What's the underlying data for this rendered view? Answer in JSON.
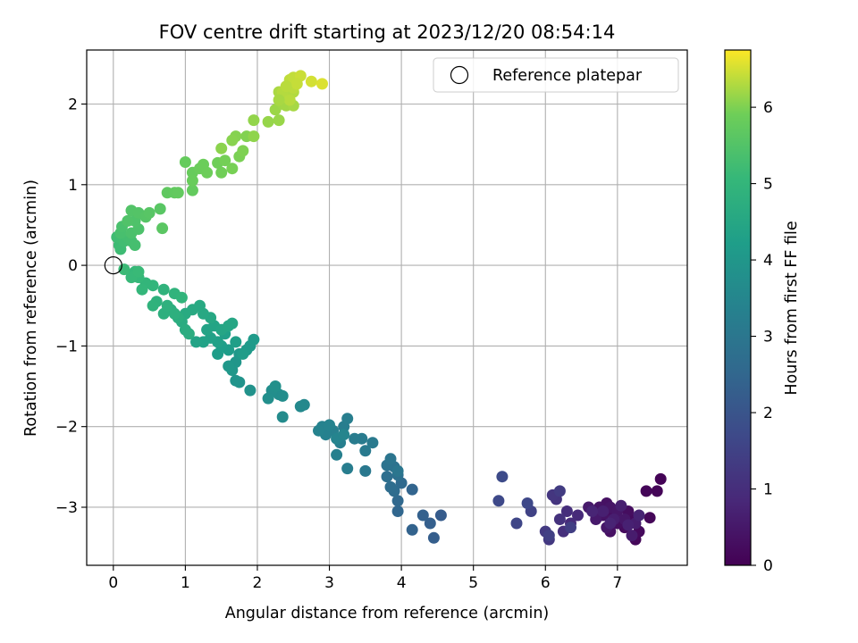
{
  "chart_data": {
    "type": "scatter",
    "title": "FOV centre drift starting at 2023/12/20 08:54:14",
    "xlabel": "Angular distance from reference (arcmin)",
    "ylabel": "Rotation from reference (arcmin)",
    "xlim": [
      -0.37,
      7.97
    ],
    "ylim": [
      -3.72,
      2.67
    ],
    "xticks": [
      0,
      1,
      2,
      3,
      4,
      5,
      6,
      7
    ],
    "yticks": [
      -3,
      -2,
      -1,
      0,
      1,
      2
    ],
    "grid": true,
    "legend": {
      "position": "top-right",
      "entries": [
        "Reference platepar"
      ]
    },
    "reference_point": {
      "x": 0,
      "y": 0
    },
    "colorbar": {
      "label": "Hours from first FF file",
      "range": [
        0,
        6.75
      ],
      "ticks": [
        0,
        1,
        2,
        3,
        4,
        5,
        6
      ],
      "colormap": "viridis"
    },
    "points": [
      [
        7.6,
        -2.65,
        0.05
      ],
      [
        7.55,
        -2.8,
        0.08
      ],
      [
        7.4,
        -2.8,
        0.1
      ],
      [
        7.45,
        -3.13,
        0.12
      ],
      [
        7.25,
        -3.4,
        0.15
      ],
      [
        7.3,
        -3.3,
        0.18
      ],
      [
        7.2,
        -3.15,
        0.2
      ],
      [
        7.1,
        -3.25,
        0.22
      ],
      [
        7.15,
        -3.05,
        0.25
      ],
      [
        7.0,
        -3.2,
        0.28
      ],
      [
        6.95,
        -3.1,
        0.3
      ],
      [
        6.9,
        -3.3,
        0.33
      ],
      [
        6.85,
        -2.95,
        0.35
      ],
      [
        6.8,
        -3.1,
        0.38
      ],
      [
        6.75,
        -3.0,
        0.4
      ],
      [
        6.9,
        -3.0,
        0.43
      ],
      [
        7.0,
        -3.05,
        0.45
      ],
      [
        7.1,
        -3.15,
        0.48
      ],
      [
        6.85,
        -3.25,
        0.5
      ],
      [
        6.7,
        -3.15,
        0.53
      ],
      [
        6.6,
        -3.0,
        0.55
      ],
      [
        7.2,
        -3.35,
        0.58
      ],
      [
        7.25,
        -3.2,
        0.6
      ],
      [
        6.95,
        -3.15,
        0.63
      ],
      [
        7.05,
        -2.98,
        0.65
      ],
      [
        6.8,
        -3.05,
        0.68
      ],
      [
        7.15,
        -3.22,
        0.7
      ],
      [
        7.3,
        -3.1,
        0.73
      ],
      [
        6.9,
        -3.2,
        0.75
      ],
      [
        6.65,
        -3.05,
        0.78
      ],
      [
        6.45,
        -3.1,
        0.9
      ],
      [
        6.35,
        -3.2,
        0.95
      ],
      [
        6.3,
        -3.05,
        1.0
      ],
      [
        6.25,
        -3.3,
        1.05
      ],
      [
        6.2,
        -3.15,
        1.1
      ],
      [
        6.15,
        -2.9,
        1.15
      ],
      [
        6.1,
        -2.85,
        1.2
      ],
      [
        6.05,
        -3.4,
        1.25
      ],
      [
        6.0,
        -3.3,
        1.3
      ],
      [
        6.2,
        -2.8,
        1.35
      ],
      [
        6.35,
        -3.25,
        1.4
      ],
      [
        6.05,
        -3.35,
        1.45
      ],
      [
        5.8,
        -3.05,
        1.5
      ],
      [
        5.6,
        -3.2,
        1.6
      ],
      [
        5.75,
        -2.95,
        1.65
      ],
      [
        5.35,
        -2.92,
        1.7
      ],
      [
        5.4,
        -2.62,
        1.75
      ],
      [
        4.55,
        -3.1,
        2.2
      ],
      [
        4.45,
        -3.38,
        2.25
      ],
      [
        4.4,
        -3.2,
        2.3
      ],
      [
        4.3,
        -3.1,
        2.35
      ],
      [
        4.15,
        -3.28,
        2.4
      ],
      [
        4.15,
        -2.78,
        2.45
      ],
      [
        3.95,
        -3.05,
        2.5
      ],
      [
        3.95,
        -2.92,
        2.55
      ],
      [
        4.0,
        -2.7,
        2.6
      ],
      [
        3.9,
        -2.8,
        2.65
      ],
      [
        3.85,
        -2.75,
        2.7
      ],
      [
        3.8,
        -2.62,
        2.75
      ],
      [
        3.95,
        -2.6,
        2.8
      ],
      [
        3.9,
        -2.5,
        2.85
      ],
      [
        3.8,
        -2.48,
        2.9
      ],
      [
        3.85,
        -2.4,
        2.95
      ],
      [
        3.95,
        -2.55,
        3.0
      ],
      [
        3.5,
        -2.55,
        3.05
      ],
      [
        3.6,
        -2.2,
        3.1
      ],
      [
        3.5,
        -2.3,
        3.12
      ],
      [
        3.45,
        -2.15,
        3.15
      ],
      [
        3.35,
        -2.15,
        3.18
      ],
      [
        3.25,
        -2.52,
        3.2
      ],
      [
        3.2,
        -2.0,
        3.22
      ],
      [
        3.25,
        -1.9,
        3.25
      ],
      [
        3.15,
        -2.2,
        3.28
      ],
      [
        3.1,
        -2.35,
        3.3
      ],
      [
        3.05,
        -2.05,
        3.32
      ],
      [
        2.95,
        -2.1,
        3.35
      ],
      [
        2.9,
        -2.0,
        3.38
      ],
      [
        2.85,
        -2.05,
        3.4
      ],
      [
        3.0,
        -1.98,
        3.42
      ],
      [
        3.1,
        -2.15,
        3.45
      ],
      [
        3.2,
        -2.1,
        3.48
      ],
      [
        2.65,
        -1.73,
        3.55
      ],
      [
        2.6,
        -1.75,
        3.6
      ],
      [
        2.35,
        -1.88,
        3.65
      ],
      [
        2.3,
        -1.6,
        3.7
      ],
      [
        2.35,
        -1.62,
        3.72
      ],
      [
        2.2,
        -1.55,
        3.75
      ],
      [
        2.15,
        -1.65,
        3.78
      ],
      [
        2.25,
        -1.5,
        3.8
      ],
      [
        1.9,
        -1.55,
        3.85
      ],
      [
        1.75,
        -1.45,
        3.9
      ],
      [
        1.7,
        -1.43,
        3.93
      ],
      [
        1.7,
        -1.2,
        3.97
      ],
      [
        1.65,
        -1.3,
        4.0
      ],
      [
        1.6,
        -1.25,
        4.03
      ],
      [
        1.75,
        -1.1,
        4.05
      ],
      [
        1.85,
        -1.05,
        4.08
      ],
      [
        1.9,
        -1.0,
        4.1
      ],
      [
        1.95,
        -0.92,
        4.13
      ],
      [
        1.8,
        -1.1,
        4.15
      ],
      [
        1.6,
        -1.05,
        4.18
      ],
      [
        1.45,
        -1.1,
        4.2
      ],
      [
        1.5,
        -1.0,
        4.22
      ],
      [
        1.7,
        -0.95,
        4.25
      ],
      [
        1.55,
        -0.85,
        4.28
      ],
      [
        1.45,
        -0.95,
        4.3
      ],
      [
        1.35,
        -0.9,
        4.32
      ],
      [
        1.25,
        -0.95,
        4.35
      ],
      [
        1.15,
        -0.95,
        4.38
      ],
      [
        1.3,
        -0.8,
        4.4
      ],
      [
        1.4,
        -0.75,
        4.42
      ],
      [
        1.5,
        -0.8,
        4.45
      ],
      [
        1.6,
        -0.75,
        4.48
      ],
      [
        1.65,
        -0.72,
        4.5
      ],
      [
        1.35,
        -0.65,
        4.52
      ],
      [
        1.25,
        -0.6,
        4.55
      ],
      [
        1.2,
        -0.5,
        4.58
      ],
      [
        1.1,
        -0.55,
        4.6
      ],
      [
        1.0,
        -0.6,
        4.62
      ],
      [
        0.95,
        -0.7,
        4.65
      ],
      [
        1.0,
        -0.8,
        4.68
      ],
      [
        1.05,
        -0.85,
        4.7
      ],
      [
        0.9,
        -0.65,
        4.72
      ],
      [
        0.8,
        -0.55,
        4.75
      ],
      [
        0.85,
        -0.6,
        4.78
      ],
      [
        0.7,
        -0.6,
        4.8
      ],
      [
        0.75,
        -0.5,
        4.82
      ],
      [
        0.6,
        -0.45,
        4.85
      ],
      [
        0.55,
        -0.5,
        4.88
      ],
      [
        0.7,
        -0.3,
        4.9
      ],
      [
        0.85,
        -0.35,
        4.92
      ],
      [
        0.95,
        -0.4,
        4.95
      ],
      [
        0.55,
        -0.25,
        4.98
      ],
      [
        0.45,
        -0.22,
        5.0
      ],
      [
        0.4,
        -0.3,
        5.02
      ],
      [
        0.35,
        -0.15,
        5.05
      ],
      [
        0.3,
        -0.08,
        5.08
      ],
      [
        0.25,
        -0.15,
        5.1
      ],
      [
        0.35,
        -0.08,
        5.12
      ],
      [
        0.15,
        -0.05,
        5.15
      ],
      [
        0.08,
        0.25,
        5.18
      ],
      [
        0.1,
        0.2,
        5.2
      ],
      [
        0.05,
        0.35,
        5.22
      ],
      [
        0.15,
        0.3,
        5.25
      ],
      [
        0.2,
        0.35,
        5.28
      ],
      [
        0.25,
        0.3,
        5.3
      ],
      [
        0.3,
        0.25,
        5.32
      ],
      [
        0.1,
        0.4,
        5.35
      ],
      [
        0.12,
        0.48,
        5.38
      ],
      [
        0.25,
        0.4,
        5.4
      ],
      [
        0.35,
        0.45,
        5.42
      ],
      [
        0.3,
        0.55,
        5.45
      ],
      [
        0.2,
        0.55,
        5.48
      ],
      [
        0.25,
        0.68,
        5.5
      ],
      [
        0.35,
        0.65,
        5.52
      ],
      [
        0.45,
        0.6,
        5.55
      ],
      [
        0.5,
        0.65,
        5.58
      ],
      [
        0.65,
        0.7,
        5.6
      ],
      [
        0.68,
        0.46,
        5.62
      ],
      [
        0.75,
        0.9,
        5.7
      ],
      [
        0.85,
        0.9,
        5.72
      ],
      [
        0.9,
        0.9,
        5.74
      ],
      [
        1.1,
        0.93,
        5.76
      ],
      [
        1.0,
        1.28,
        5.78
      ],
      [
        1.1,
        1.15,
        5.8
      ],
      [
        1.1,
        1.05,
        5.82
      ],
      [
        1.2,
        1.2,
        5.84
      ],
      [
        1.25,
        1.25,
        5.86
      ],
      [
        1.3,
        1.15,
        5.88
      ],
      [
        1.45,
        1.27,
        5.9
      ],
      [
        1.5,
        1.15,
        5.92
      ],
      [
        1.55,
        1.3,
        5.94
      ],
      [
        1.65,
        1.2,
        5.96
      ],
      [
        1.75,
        1.35,
        5.98
      ],
      [
        1.8,
        1.42,
        6.0
      ],
      [
        1.85,
        1.6,
        6.02
      ],
      [
        1.7,
        1.6,
        6.04
      ],
      [
        1.65,
        1.55,
        6.06
      ],
      [
        1.5,
        1.45,
        6.08
      ],
      [
        1.95,
        1.6,
        6.1
      ],
      [
        1.95,
        1.8,
        6.12
      ],
      [
        2.15,
        1.78,
        6.14
      ],
      [
        2.3,
        1.8,
        6.16
      ],
      [
        2.25,
        1.93,
        6.18
      ],
      [
        2.35,
        2.0,
        6.2
      ],
      [
        2.4,
        1.98,
        6.22
      ],
      [
        2.5,
        1.98,
        6.24
      ],
      [
        2.3,
        2.15,
        6.26
      ],
      [
        2.4,
        2.1,
        6.28
      ],
      [
        2.5,
        2.15,
        6.3
      ],
      [
        2.35,
        2.15,
        6.32
      ],
      [
        2.45,
        2.05,
        6.34
      ],
      [
        2.5,
        2.2,
        6.36
      ],
      [
        2.45,
        2.3,
        6.38
      ],
      [
        2.5,
        2.33,
        6.4
      ],
      [
        2.6,
        2.35,
        6.45
      ],
      [
        2.75,
        2.28,
        6.5
      ],
      [
        2.9,
        2.25,
        6.55
      ],
      [
        2.55,
        2.25,
        6.42
      ],
      [
        2.3,
        2.05,
        6.25
      ],
      [
        2.4,
        2.22,
        6.35
      ]
    ]
  }
}
